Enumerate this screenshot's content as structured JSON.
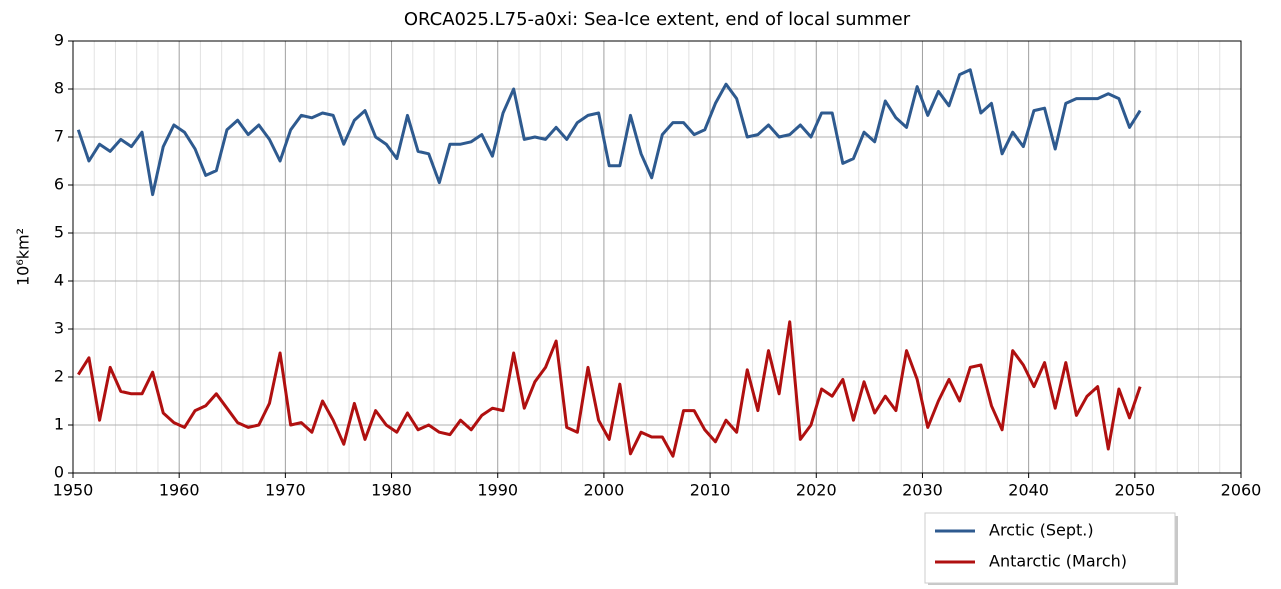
{
  "chart_data": {
    "type": "line",
    "title": "ORCA025.L75-a0xi: Sea-Ice extent, end of local summer",
    "y_label": "10⁶km²",
    "x": [
      1950.5,
      1951.5,
      1952.5,
      1953.5,
      1954.5,
      1955.5,
      1956.5,
      1957.5,
      1958.5,
      1959.5,
      1960.5,
      1961.5,
      1962.5,
      1963.5,
      1964.5,
      1965.5,
      1966.5,
      1967.5,
      1968.5,
      1969.5,
      1970.5,
      1971.5,
      1972.5,
      1973.5,
      1974.5,
      1975.5,
      1976.5,
      1977.5,
      1978.5,
      1979.5,
      1980.5,
      1981.5,
      1982.5,
      1983.5,
      1984.5,
      1985.5,
      1986.5,
      1987.5,
      1988.5,
      1989.5,
      1990.5,
      1991.5,
      1992.5,
      1993.5,
      1994.5,
      1995.5,
      1996.5,
      1997.5,
      1998.5,
      1999.5,
      2000.5,
      2001.5,
      2002.5,
      2003.5,
      2004.5,
      2005.5,
      2006.5,
      2007.5,
      2008.5,
      2009.5,
      2010.5,
      2011.5,
      2012.5,
      2013.5,
      2014.5,
      2015.5,
      2016.5,
      2017.5,
      2018.5,
      2019.5,
      2020.5,
      2021.5,
      2022.5,
      2023.5,
      2024.5,
      2025.5,
      2026.5,
      2027.5,
      2028.5,
      2029.5,
      2030.5,
      2031.5,
      2032.5,
      2033.5,
      2034.5,
      2035.5,
      2036.5,
      2037.5,
      2038.5,
      2039.5,
      2040.5,
      2041.5,
      2042.5,
      2043.5,
      2044.5,
      2045.5,
      2046.5,
      2047.5,
      2048.5,
      2049.5,
      2050.5
    ],
    "series": [
      {
        "name": "Arctic (Sept.)",
        "color": "#2e5a8f",
        "values": [
          7.15,
          6.5,
          6.85,
          6.7,
          6.95,
          6.8,
          7.1,
          5.8,
          6.8,
          7.25,
          7.1,
          6.75,
          6.2,
          6.3,
          7.15,
          7.35,
          7.05,
          7.25,
          6.95,
          6.5,
          7.15,
          7.45,
          7.4,
          7.5,
          7.45,
          6.85,
          7.35,
          7.55,
          7.0,
          6.85,
          6.55,
          7.45,
          6.7,
          6.65,
          6.05,
          6.85,
          6.85,
          6.9,
          7.05,
          6.6,
          7.5,
          8.0,
          6.95,
          7.0,
          6.95,
          7.2,
          6.95,
          7.3,
          7.45,
          7.5,
          6.4,
          6.4,
          7.45,
          6.65,
          6.15,
          7.05,
          7.3,
          7.3,
          7.05,
          7.15,
          7.7,
          8.1,
          7.8,
          7.0,
          7.05,
          7.25,
          7.0,
          7.05,
          7.25,
          7.0,
          7.5,
          7.5,
          6.45,
          6.55,
          7.1,
          6.9,
          7.75,
          7.4,
          7.2,
          8.05,
          7.45,
          7.95,
          7.65,
          8.3,
          8.4,
          7.5,
          7.7,
          6.65,
          7.1,
          6.8,
          7.55,
          7.6,
          6.75,
          7.7,
          7.8,
          7.8,
          7.8,
          7.9,
          7.8,
          7.2,
          7.55
        ]
      },
      {
        "name": "Antarctic (March)",
        "color": "#b01010",
        "values": [
          2.05,
          2.4,
          1.1,
          2.2,
          1.7,
          1.65,
          1.65,
          2.1,
          1.25,
          1.05,
          0.95,
          1.3,
          1.4,
          1.65,
          1.35,
          1.05,
          0.95,
          1.0,
          1.45,
          2.5,
          1.0,
          1.05,
          0.85,
          1.5,
          1.1,
          0.6,
          1.45,
          0.7,
          1.3,
          1.0,
          0.85,
          1.25,
          0.9,
          1.0,
          0.85,
          0.8,
          1.1,
          0.9,
          1.2,
          1.35,
          1.3,
          2.5,
          1.35,
          1.9,
          2.2,
          2.75,
          0.95,
          0.85,
          2.2,
          1.1,
          0.7,
          1.85,
          0.4,
          0.85,
          0.75,
          0.75,
          0.35,
          1.3,
          1.3,
          0.9,
          0.65,
          1.1,
          0.85,
          2.15,
          1.3,
          2.55,
          1.65,
          3.15,
          0.7,
          1.0,
          1.75,
          1.6,
          1.95,
          1.1,
          1.9,
          1.25,
          1.6,
          1.3,
          2.55,
          1.95,
          0.95,
          1.5,
          1.95,
          1.5,
          2.2,
          2.25,
          1.4,
          0.9,
          2.55,
          2.25,
          1.8,
          2.3,
          1.35,
          2.3,
          1.2,
          1.6,
          1.8,
          0.5,
          1.75,
          1.15,
          1.8
        ]
      }
    ],
    "xlim": [
      1950,
      2060
    ],
    "xticks": [
      1950,
      1960,
      1970,
      1980,
      1990,
      2000,
      2010,
      2020,
      2030,
      2040,
      2050,
      2060
    ],
    "ylim": [
      0,
      9
    ],
    "yticks": [
      0,
      1,
      2,
      3,
      4,
      5,
      6,
      7,
      8,
      9
    ],
    "grid": true,
    "legend": "below right"
  }
}
